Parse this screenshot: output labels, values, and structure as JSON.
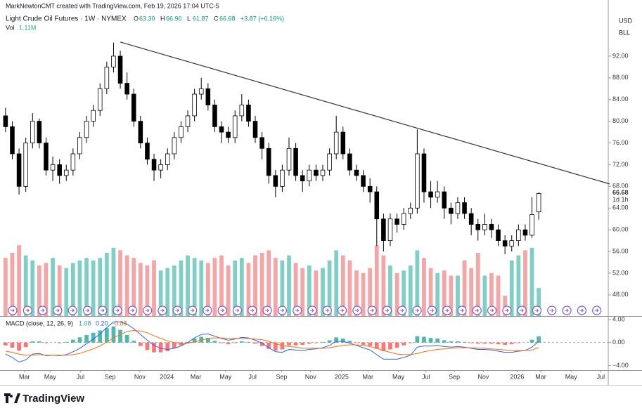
{
  "header": {
    "credit": "MarkNewtonCMT created with TradingView.com, Feb 19, 2026 17:04 UTC-5",
    "symbol": "Light Crude Oil Futures · 1W · NYMEX",
    "ohlc_labels": [
      "O",
      "H",
      "L",
      "C"
    ],
    "ohlc_values": [
      "63.30",
      "66.90",
      "61.87",
      "66.68"
    ],
    "change": "+3.87 (+6.16%)",
    "currency": "USD",
    "unit": "BLL",
    "countdown": "1d 1h",
    "logo": "TradingView"
  },
  "chart_data": {
    "type": "candlestick",
    "xlim": [
      -0.3,
      89.3
    ],
    "ylim": [
      44.1,
      101.7
    ],
    "grid": false,
    "xticks": [
      {
        "value": 2.8,
        "label": "Mar"
      },
      {
        "value": 6.6,
        "label": "May"
      },
      {
        "value": 11.1,
        "label": "Jul"
      },
      {
        "value": 15.5,
        "label": "Sep"
      },
      {
        "value": 19.9,
        "label": "Nov"
      },
      {
        "value": 23.9,
        "label": "2024"
      },
      {
        "value": 28.2,
        "label": "Mar"
      },
      {
        "value": 32.6,
        "label": "May"
      },
      {
        "value": 36.6,
        "label": "Jul"
      },
      {
        "value": 40.9,
        "label": "Sep"
      },
      {
        "value": 45.2,
        "label": "Nov"
      },
      {
        "value": 49.8,
        "label": "2025"
      },
      {
        "value": 53.7,
        "label": "Mar"
      },
      {
        "value": 58.2,
        "label": "May"
      },
      {
        "value": 62.3,
        "label": "Jul"
      },
      {
        "value": 66.5,
        "label": "Sep"
      },
      {
        "value": 70.8,
        "label": "Nov"
      },
      {
        "value": 75.8,
        "label": "2026"
      },
      {
        "value": 79.3,
        "label": "Mar"
      },
      {
        "value": 83.8,
        "label": "May"
      },
      {
        "value": 88.2,
        "label": "Jul"
      }
    ],
    "yticks": [
      {
        "value": 92,
        "label": "92.00"
      },
      {
        "value": 88,
        "label": "88.00"
      },
      {
        "value": 84,
        "label": "84.00"
      },
      {
        "value": 80,
        "label": "80.00"
      },
      {
        "value": 76,
        "label": "76.00"
      },
      {
        "value": 72,
        "label": "72.00"
      },
      {
        "value": 68,
        "label": "68.00"
      },
      {
        "value": 64,
        "label": "64.00"
      },
      {
        "value": 60,
        "label": "60.00"
      },
      {
        "value": 56,
        "label": "56.00"
      },
      {
        "value": 52,
        "label": "52.00"
      },
      {
        "value": 48,
        "label": "48.00"
      }
    ],
    "candles": [
      [
        81,
        82.5,
        78,
        79
      ],
      [
        79,
        80,
        73,
        74
      ],
      [
        74,
        75,
        66.5,
        68
      ],
      [
        68,
        77,
        67,
        76
      ],
      [
        76,
        81.5,
        75,
        80
      ],
      [
        80,
        80.5,
        75,
        76
      ],
      [
        76,
        77,
        70,
        71
      ],
      [
        71,
        73.5,
        69,
        72
      ],
      [
        72,
        73,
        68.5,
        70
      ],
      [
        70,
        72,
        69,
        71
      ],
      [
        71,
        75,
        70,
        74
      ],
      [
        74,
        78,
        73,
        77
      ],
      [
        77,
        81,
        76,
        80
      ],
      [
        80,
        83,
        79,
        82
      ],
      [
        82,
        87,
        81,
        86
      ],
      [
        86,
        91,
        85,
        90
      ],
      [
        90,
        94.5,
        89,
        92
      ],
      [
        92,
        93,
        86,
        87
      ],
      [
        87,
        89,
        84,
        85
      ],
      [
        85,
        86,
        79,
        80
      ],
      [
        80,
        81,
        75,
        76
      ],
      [
        76,
        77,
        72,
        73
      ],
      [
        73,
        74,
        69,
        71
      ],
      [
        71,
        73,
        69.5,
        72
      ],
      [
        72,
        75,
        71,
        74
      ],
      [
        74,
        78,
        73,
        77
      ],
      [
        77,
        80,
        76,
        79
      ],
      [
        79,
        82,
        78,
        81
      ],
      [
        81,
        86,
        80,
        85
      ],
      [
        85,
        88,
        84,
        86
      ],
      [
        86,
        87,
        82,
        83
      ],
      [
        83,
        84,
        78,
        79
      ],
      [
        79,
        80,
        76,
        78
      ],
      [
        78,
        79,
        76,
        77
      ],
      [
        77,
        82,
        76,
        81
      ],
      [
        81,
        85,
        80,
        83
      ],
      [
        83,
        84,
        79,
        80
      ],
      [
        80,
        81,
        76,
        77
      ],
      [
        77,
        78,
        73,
        75
      ],
      [
        75,
        76,
        68.5,
        70
      ],
      [
        70,
        71,
        66,
        68
      ],
      [
        68,
        72,
        67,
        71
      ],
      [
        71,
        77,
        70,
        75
      ],
      [
        75,
        76,
        69,
        70
      ],
      [
        70,
        71,
        67,
        69
      ],
      [
        69,
        72,
        68,
        71
      ],
      [
        71,
        72,
        69,
        70
      ],
      [
        70,
        72,
        69,
        71
      ],
      [
        71,
        75,
        70,
        74
      ],
      [
        74,
        81,
        73,
        78
      ],
      [
        78,
        79,
        73,
        74
      ],
      [
        74,
        75,
        70,
        71
      ],
      [
        71,
        72,
        69,
        70
      ],
      [
        70,
        71,
        67,
        68
      ],
      [
        68,
        69.5,
        65,
        67
      ],
      [
        67,
        68,
        57,
        62
      ],
      [
        62,
        63,
        56,
        58
      ],
      [
        58,
        63,
        57,
        62
      ],
      [
        62,
        63,
        59.5,
        61
      ],
      [
        61,
        64,
        60,
        63
      ],
      [
        63,
        65,
        62,
        64
      ],
      [
        64,
        78.5,
        63,
        74
      ],
      [
        74,
        75,
        65,
        67
      ],
      [
        67,
        69,
        64,
        66
      ],
      [
        66,
        69,
        65,
        67
      ],
      [
        67,
        68,
        62,
        64
      ],
      [
        64,
        65,
        61,
        63
      ],
      [
        63,
        66,
        62,
        65
      ],
      [
        65,
        66,
        62,
        63
      ],
      [
        63,
        64,
        59,
        61
      ],
      [
        61,
        62,
        58,
        60
      ],
      [
        60,
        63,
        59,
        61
      ],
      [
        61,
        62,
        58.5,
        60
      ],
      [
        60,
        61,
        57,
        58
      ],
      [
        58,
        59,
        55.5,
        57
      ],
      [
        57,
        59,
        56,
        58
      ],
      [
        58,
        61,
        57,
        60
      ],
      [
        60,
        61,
        58,
        59
      ],
      [
        59,
        66,
        58.5,
        62.81
      ],
      [
        63.3,
        66.9,
        61.87,
        66.68
      ]
    ],
    "trendline": [
      [
        17,
        94.6
      ],
      [
        89.5,
        68.45
      ]
    ],
    "volume_name": "Vol",
    "volume": [
      2.3,
      2.5,
      2.8,
      2.4,
      2.2,
      2.0,
      2.1,
      2.3,
      2.0,
      1.9,
      2.1,
      2.2,
      2.3,
      2.2,
      2.3,
      2.5,
      2.7,
      2.6,
      2.4,
      2.3,
      2.1,
      2.0,
      2.2,
      1.8,
      1.9,
      2.0,
      2.2,
      2.4,
      2.3,
      2.2,
      2.1,
      2.3,
      2.4,
      2.0,
      2.2,
      2.3,
      2.1,
      2.4,
      2.5,
      2.6,
      2.3,
      2.2,
      2.4,
      2.1,
      1.9,
      2.0,
      1.8,
      1.9,
      2.2,
      2.6,
      2.4,
      2.2,
      1.8,
      1.7,
      1.9,
      2.8,
      2.4,
      2.0,
      1.7,
      1.8,
      2.0,
      2.6,
      2.3,
      1.9,
      1.7,
      1.8,
      1.6,
      1.6,
      2.2,
      1.9,
      2.5,
      1.6,
      1.7,
      1.6,
      0.8,
      2.2,
      2.4,
      2.6,
      2.7,
      1.11
    ],
    "volume_label": "1.11M",
    "macd": {
      "title": "MACD (close, 12, 26, 9)",
      "ylim": [
        -4.8,
        4.6
      ],
      "yticks": [
        {
          "value": 4,
          "label": "4.00"
        },
        {
          "value": 0,
          "label": "0.00"
        },
        {
          "value": -4,
          "label": "−4.00"
        }
      ],
      "hist": [
        -0.5,
        -0.9,
        -1.4,
        -0.8,
        0.2,
        0.2,
        -0.1,
        0,
        -0.1,
        0.1,
        0.5,
        0.9,
        1.3,
        1.7,
        2.1,
        2.5,
        2.8,
        2.2,
        1.3,
        0.3,
        -0.6,
        -1.3,
        -1.7,
        -1.7,
        -1.5,
        -1.0,
        -0.5,
        0.1,
        0.7,
        1.0,
        0.8,
        0.3,
        -0.1,
        -0.3,
        -0.1,
        0.2,
        0.1,
        -0.2,
        -0.6,
        -1.1,
        -1.4,
        -1.2,
        -0.5,
        -0.5,
        -0.4,
        -0.2,
        -0.1,
        0.1,
        0.4,
        0.9,
        0.7,
        0.3,
        -0.1,
        -0.4,
        -0.6,
        -1.1,
        -1.5,
        -1.2,
        -0.9,
        -0.5,
        -0.1,
        1.1,
        1.0,
        0.8,
        0.7,
        0.4,
        0.2,
        0.2,
        0.1,
        -0.1,
        -0.2,
        -0.2,
        -0.2,
        -0.3,
        -0.4,
        -0.3,
        -0.1,
        0.0,
        0.5,
        1.08
      ],
      "macd": [
        -2.0,
        -2.6,
        -3.4,
        -3.0,
        -2.0,
        -1.9,
        -2.3,
        -2.2,
        -2.3,
        -2.1,
        -1.6,
        -1.0,
        -0.2,
        0.6,
        1.5,
        2.6,
        3.6,
        3.6,
        3.2,
        2.4,
        1.4,
        0.4,
        -0.5,
        -1.0,
        -1.2,
        -1.0,
        -0.6,
        0.0,
        0.8,
        1.4,
        1.5,
        1.1,
        0.7,
        0.4,
        0.6,
        0.9,
        0.8,
        0.4,
        -0.1,
        -0.9,
        -1.6,
        -1.7,
        -1.2,
        -1.3,
        -1.4,
        -1.2,
        -1.1,
        -0.9,
        -0.5,
        0.2,
        0.2,
        -0.1,
        -0.5,
        -0.9,
        -1.3,
        -2.1,
        -2.9,
        -2.9,
        -2.9,
        -2.6,
        -2.2,
        -0.8,
        -0.6,
        -0.6,
        -0.5,
        -0.7,
        -0.8,
        -0.7,
        -0.8,
        -1.0,
        -1.2,
        -1.2,
        -1.3,
        -1.5,
        -1.7,
        -1.7,
        -1.5,
        -1.4,
        -0.8,
        0.2
      ],
      "signal": [
        -1.5,
        -1.7,
        -2.0,
        -2.2,
        -2.2,
        -2.1,
        -2.2,
        -2.2,
        -2.2,
        -2.2,
        -2.1,
        -1.9,
        -1.5,
        -1.1,
        -0.6,
        0.1,
        0.8,
        1.4,
        1.9,
        2.1,
        2.0,
        1.7,
        1.2,
        0.7,
        0.3,
        0.0,
        -0.1,
        -0.1,
        0.1,
        0.4,
        0.7,
        0.8,
        0.8,
        0.7,
        0.7,
        0.7,
        0.7,
        0.6,
        0.5,
        0.2,
        -0.2,
        -0.5,
        -0.7,
        -0.8,
        -1.0,
        -1.0,
        -1.0,
        -1.0,
        -0.9,
        -0.7,
        -0.5,
        -0.4,
        -0.4,
        -0.5,
        -0.7,
        -1.0,
        -1.4,
        -1.7,
        -2.0,
        -2.1,
        -2.1,
        -1.9,
        -1.6,
        -1.4,
        -1.2,
        -1.1,
        -1.0,
        -0.9,
        -0.9,
        -0.9,
        -1.0,
        -1.0,
        -1.1,
        -1.2,
        -1.3,
        -1.4,
        -1.4,
        -1.4,
        -1.3,
        -0.88
      ],
      "legend_labels": [
        "1.08",
        "0.20",
        "-0.88"
      ],
      "hist_color": "#26a69a",
      "macd_color": "#2962ff",
      "signal_color": "#ff6d00"
    },
    "up_color": "#ffffff",
    "down_color": "#000000",
    "volume_up_color": "#7fcfc6",
    "volume_down_color": "#f5a5a5",
    "trendline_color": "#333333"
  }
}
